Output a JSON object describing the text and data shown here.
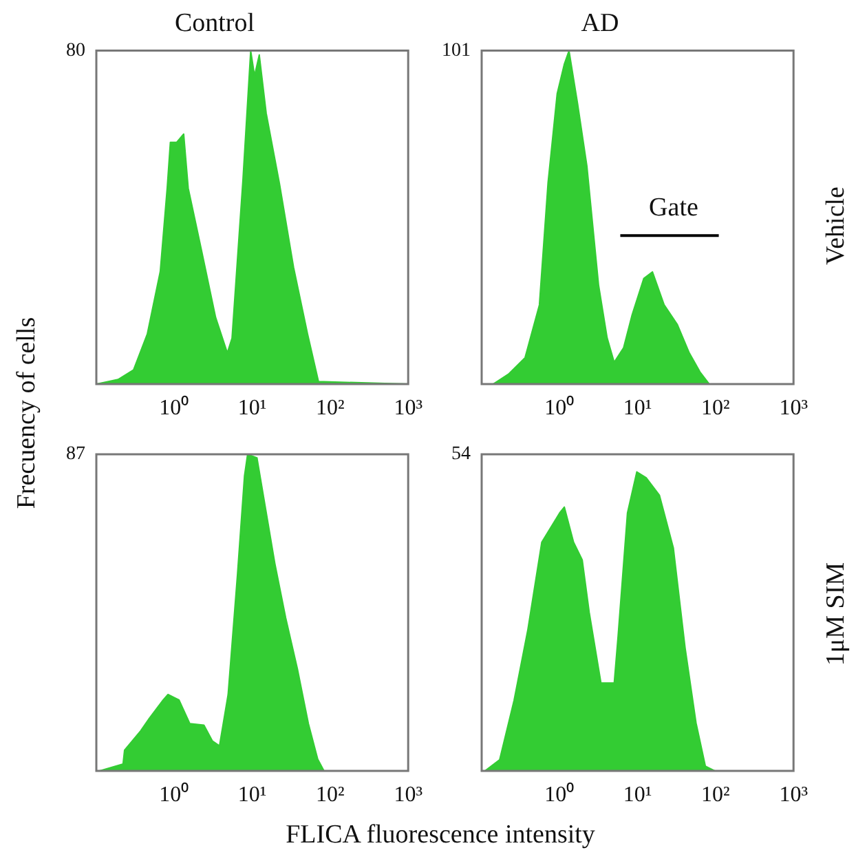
{
  "chart_data": [
    {
      "type": "area",
      "title": "Control",
      "ylabel": "Frecuency of cells",
      "xlim": [
        0.1,
        1000
      ],
      "ylim": [
        0,
        80
      ],
      "log": "x",
      "grid": false,
      "xticks": [
        {
          "value": 1,
          "label": "10⁰"
        },
        {
          "value": 10,
          "label": "10¹"
        },
        {
          "value": 100,
          "label": "10²"
        },
        {
          "value": 1000,
          "label": "10³"
        }
      ],
      "yticks": [
        80
      ],
      "series": [
        {
          "color": "#33cc33",
          "x": [
            0.1,
            0.19,
            0.3,
            0.45,
            0.66,
            0.81,
            0.89,
            1.07,
            1.32,
            1.51,
            2.24,
            3.39,
            4.79,
            5.5,
            7.59,
            9.55,
            10.7,
            12.3,
            15.1,
            22.4,
            33.9,
            51.3,
            70.8,
            1000
          ],
          "values": [
            0,
            1.1,
            3.4,
            12,
            27,
            47,
            58,
            58,
            60,
            47,
            32,
            16,
            7.5,
            11,
            49,
            80,
            74,
            79,
            65,
            48,
            28,
            12,
            0.6,
            0
          ]
        }
      ]
    },
    {
      "type": "area",
      "title": "AD",
      "y2label": "Vehicle",
      "xlim": [
        0.1,
        1000
      ],
      "ylim": [
        0,
        101
      ],
      "log": "x",
      "grid": false,
      "xticks": [
        {
          "value": 1,
          "label": "10⁰"
        },
        {
          "value": 10,
          "label": "10¹"
        },
        {
          "value": 100,
          "label": "10²"
        },
        {
          "value": 1000,
          "label": "10³"
        }
      ],
      "yticks": [
        101
      ],
      "annotations": [
        {
          "text": "Gate",
          "x": 29,
          "y": 45
        }
      ],
      "series": [
        {
          "color": "#33cc33",
          "x": [
            0.14,
            0.22,
            0.36,
            0.55,
            0.71,
            0.93,
            1.15,
            1.32,
            1.7,
            2.24,
            3.16,
            4.07,
            5.01,
            6.61,
            8.51,
            12,
            15.5,
            21.9,
            32.4,
            45.7,
            63.1,
            83.2,
            1000
          ],
          "values": [
            0,
            3,
            8,
            24,
            61,
            88,
            97,
            101,
            85,
            66,
            30,
            14,
            6.6,
            11,
            21,
            32,
            34,
            24,
            18,
            9.6,
            3.7,
            0,
            0
          ]
        },
        {
          "type": "line",
          "color": "#000000",
          "x": [
            6,
            110
          ],
          "values": [
            45,
            45
          ]
        }
      ]
    },
    {
      "type": "area",
      "xlabel": "FLICA fluorescence intensity",
      "xlim": [
        0.1,
        1000
      ],
      "ylim": [
        0,
        87
      ],
      "log": "x",
      "grid": false,
      "xticks": [
        {
          "value": 1,
          "label": "10⁰"
        },
        {
          "value": 10,
          "label": "10¹"
        },
        {
          "value": 100,
          "label": "10²"
        },
        {
          "value": 1000,
          "label": "10³"
        }
      ],
      "yticks": [
        87
      ],
      "series": [
        {
          "color": "#33cc33",
          "x": [
            0.11,
            0.22,
            0.23,
            0.37,
            0.48,
            0.72,
            0.83,
            1.15,
            1.58,
            2.4,
            3.09,
            3.8,
            4.9,
            6.46,
            7.94,
            8.71,
            11.5,
            13.8,
            19.5,
            26.9,
            38,
            52.5,
            69.2,
            83.2,
            1000
          ],
          "values": [
            0,
            1.9,
            5.7,
            11,
            14.5,
            19.5,
            21,
            19.5,
            13,
            12.6,
            8.2,
            6.9,
            21,
            54,
            81,
            87,
            86,
            76,
            57,
            42,
            28,
            13,
            3.2,
            0,
            0
          ]
        }
      ]
    },
    {
      "type": "area",
      "y2label": "1μM SIM",
      "xlim": [
        0.1,
        1000
      ],
      "ylim": [
        0,
        54
      ],
      "log": "x",
      "grid": false,
      "xticks": [
        {
          "value": 1,
          "label": "10⁰"
        },
        {
          "value": 10,
          "label": "10¹"
        },
        {
          "value": 100,
          "label": "10²"
        },
        {
          "value": 1000,
          "label": "10³"
        }
      ],
      "yticks": [
        54
      ],
      "series": [
        {
          "color": "#33cc33",
          "x": [
            0.11,
            0.17,
            0.26,
            0.39,
            0.59,
            0.81,
            1,
            1.15,
            1.51,
            1.95,
            2.4,
            3.39,
            5.01,
            5.62,
            7.41,
            9.77,
            12.9,
            19.1,
            28.8,
            40.7,
            56.2,
            74.1,
            97.7,
            1000
          ],
          "values": [
            0,
            1.9,
            12,
            24,
            39,
            42,
            44,
            45,
            39,
            36,
            27,
            15,
            15,
            23,
            44,
            51,
            50,
            47,
            38,
            21,
            8.2,
            0.8,
            0,
            0
          ]
        }
      ]
    }
  ]
}
